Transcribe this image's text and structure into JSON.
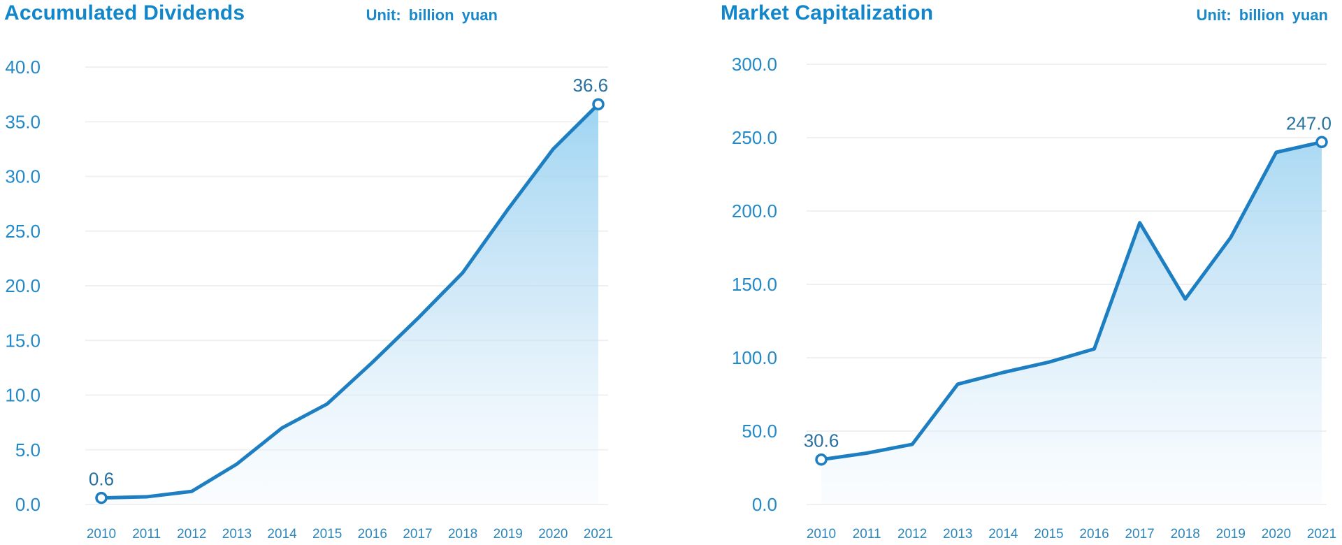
{
  "page": {
    "background": "#ffffff"
  },
  "chart_data": [
    {
      "type": "area",
      "title": "Accumulated Dividends",
      "unit_label": "Unit: billion yuan",
      "x": [
        "2010",
        "2011",
        "2012",
        "2013",
        "2014",
        "2015",
        "2016",
        "2017",
        "2018",
        "2019",
        "2020",
        "2021"
      ],
      "values": [
        0.6,
        0.7,
        1.2,
        3.7,
        7.0,
        9.2,
        13.0,
        17.0,
        21.2,
        27.0,
        32.5,
        36.6
      ],
      "ylim": [
        0,
        40
      ],
      "ytick_step": 5,
      "ytick_labels": [
        "0.0",
        "5.0",
        "10.0",
        "15.0",
        "20.0",
        "25.0",
        "30.0",
        "35.0",
        "40.0"
      ],
      "first_point_label": "0.6",
      "last_point_label": "36.6",
      "grid": true,
      "legend": "none"
    },
    {
      "type": "area",
      "title": "Market Capitalization",
      "unit_label": "Unit: billion yuan",
      "x": [
        "2010",
        "2011",
        "2012",
        "2013",
        "2014",
        "2015",
        "2016",
        "2017",
        "2018",
        "2019",
        "2020",
        "2021"
      ],
      "values": [
        30.6,
        35.0,
        41.0,
        82.0,
        90.0,
        97.0,
        106.0,
        192.0,
        140.0,
        182.0,
        240.0,
        247.0
      ],
      "ylim": [
        0,
        300
      ],
      "ytick_step": 50,
      "ytick_labels": [
        "0.0",
        "50.0",
        "100.0",
        "150.0",
        "200.0",
        "250.0",
        "300.0"
      ],
      "first_point_label": "30.6",
      "last_point_label": "247.0",
      "grid": true,
      "legend": "none"
    }
  ],
  "colors": {
    "title": "#1186cb",
    "unit": "#1989c9",
    "axis_label": "#2289c9",
    "year_label": "#2d86ba",
    "point_label": "#28719e",
    "line": "#1d7fc1",
    "gridline": "#f0f0f0",
    "fill_top": "#8ccdf0",
    "fill_mid": "#b9ddf4",
    "fill_bottom": "#eaf5fc",
    "background": "#ffffff"
  }
}
